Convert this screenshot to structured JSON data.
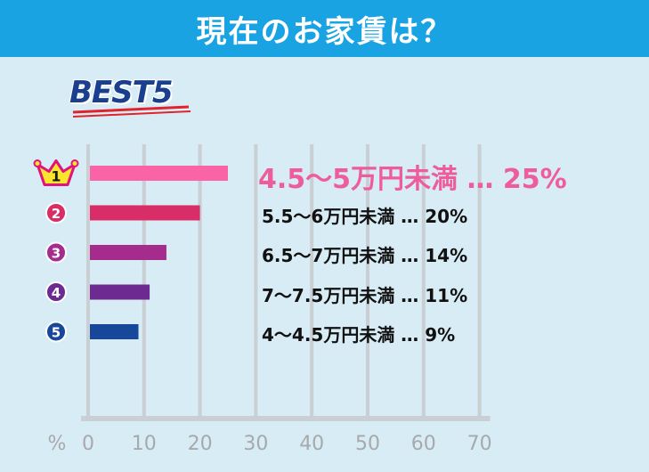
{
  "header": {
    "title": "現在のお家賃は？"
  },
  "badge": "BEST5",
  "colors": {
    "header_bg": "#1aa3e3",
    "background": "#d7ecf5",
    "best5": "#1a3f8f"
  },
  "chart_data": {
    "type": "bar",
    "orientation": "horizontal",
    "unit_label": "%",
    "xlim": [
      0,
      70
    ],
    "xticks": [
      "0",
      "10",
      "20",
      "30",
      "40",
      "50",
      "60",
      "70"
    ],
    "grid": true,
    "categories": [
      "4.5〜5万円未満",
      "5.5〜6万円未満",
      "6.5〜7万円未満",
      "7〜7.5万円未満",
      "4〜4.5万円未満"
    ],
    "values": [
      25,
      20,
      14,
      11,
      9
    ],
    "ranks": [
      "1",
      "2",
      "3",
      "4",
      "5"
    ],
    "labels": [
      "4.5〜5万円未満 … 25%",
      "5.5〜6万円未満 … 20%",
      "6.5〜7万円未満 … 14%",
      "7〜7.5万円未満 … 11%",
      "4〜4.5万円未満 … 9%"
    ],
    "bar_colors": [
      "#fa64a6",
      "#d92d67",
      "#a52c8d",
      "#6d2a90",
      "#17479b"
    ]
  }
}
